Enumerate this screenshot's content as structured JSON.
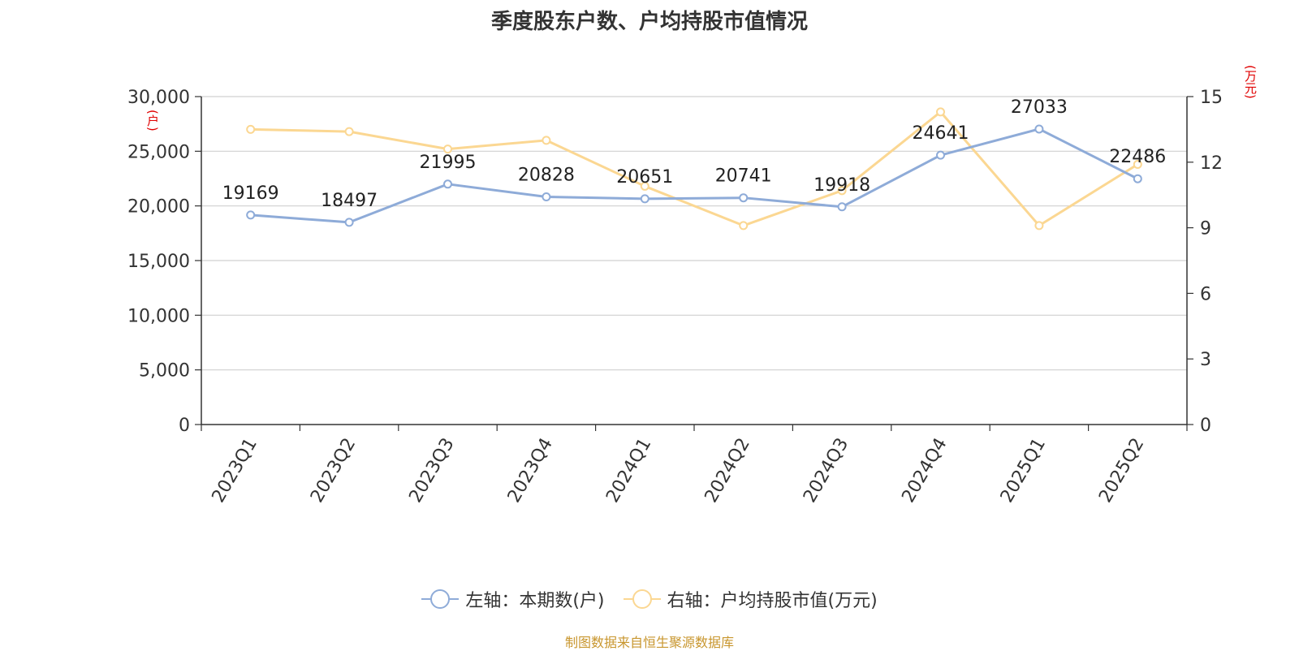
{
  "title": "季度股东户数、户均持股市值情况",
  "left_unit": "(户)",
  "right_unit": "(万元)",
  "source": "制图数据来自恒生聚源数据库",
  "legend": [
    {
      "label": "左轴：本期数(户)",
      "color": "#8eabd8"
    },
    {
      "label": "右轴：户均持股市值(万元)",
      "color": "#fbd792"
    }
  ],
  "chart_data": {
    "type": "line",
    "title": "季度股东户数、户均持股市值情况",
    "categories": [
      "2023Q1",
      "2023Q2",
      "2023Q3",
      "2023Q4",
      "2024Q1",
      "2024Q2",
      "2024Q3",
      "2024Q4",
      "2025Q1",
      "2025Q2"
    ],
    "y_left": {
      "label": "(户)",
      "ticks": [
        "0",
        "5,000",
        "10,000",
        "15,000",
        "20,000",
        "25,000",
        "30,000"
      ],
      "lim": [
        0,
        30000
      ]
    },
    "y_right": {
      "label": "(万元)",
      "ticks": [
        "0",
        "3",
        "6",
        "9",
        "12",
        "15"
      ],
      "lim": [
        0,
        15
      ]
    },
    "grid": true,
    "legend_position": "bottom-center",
    "series": [
      {
        "name": "左轴：本期数(户)",
        "axis": "left",
        "color": "#8eabd8",
        "values": [
          19169,
          18497,
          21995,
          20828,
          20651,
          20741,
          19918,
          24641,
          27033,
          22486
        ],
        "labels": [
          "19169",
          "18497",
          "21995",
          "20828",
          "20651",
          "20741",
          "19918",
          "24641",
          "27033",
          "22486"
        ]
      },
      {
        "name": "右轴：户均持股市值(万元)",
        "axis": "right",
        "color": "#fbd792",
        "values": [
          13.5,
          13.4,
          12.6,
          13.0,
          10.9,
          9.1,
          10.7,
          14.3,
          9.1,
          11.9
        ]
      }
    ]
  }
}
